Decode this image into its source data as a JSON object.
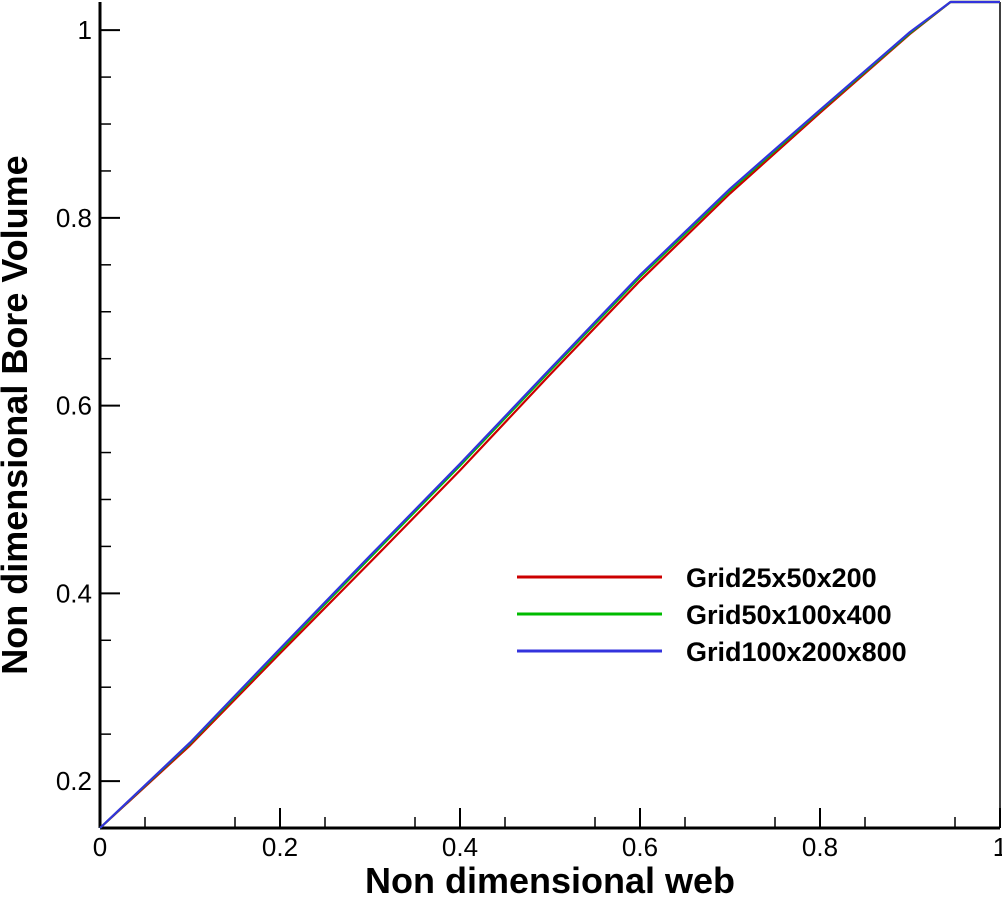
{
  "chart_data": {
    "type": "line",
    "title": "",
    "xlabel": "Non dimensional web",
    "ylabel": "Non dimensional Bore Volume",
    "xlim": [
      0,
      1
    ],
    "ylim": [
      0.15,
      1.03
    ],
    "x_ticks": [
      0,
      0.2,
      0.4,
      0.6,
      0.8,
      1
    ],
    "x_tick_labels": [
      "0",
      "0.2",
      "0.4",
      "0.6",
      "0.8",
      "1"
    ],
    "y_ticks": [
      0.2,
      0.4,
      0.6,
      0.8,
      1
    ],
    "y_tick_labels": [
      "0.2",
      "0.4",
      "0.6",
      "0.8",
      "1"
    ],
    "grid": false,
    "legend_position": "center-right",
    "series": [
      {
        "name": "Grid25x50x200",
        "color": "#cc0000",
        "x": [
          0,
          0.1,
          0.2,
          0.3,
          0.4,
          0.5,
          0.6,
          0.7,
          0.8,
          0.9,
          0.945,
          1.0
        ],
        "y": [
          0.15,
          0.238,
          0.336,
          0.433,
          0.531,
          0.633,
          0.733,
          0.826,
          0.912,
          0.996,
          1.03,
          1.03
        ]
      },
      {
        "name": "Grid50x100x400",
        "color": "#00bb00",
        "x": [
          0,
          0.1,
          0.2,
          0.3,
          0.4,
          0.5,
          0.6,
          0.7,
          0.8,
          0.9,
          0.945,
          1.0
        ],
        "y": [
          0.15,
          0.24,
          0.339,
          0.438,
          0.536,
          0.637,
          0.737,
          0.829,
          0.914,
          0.997,
          1.03,
          1.03
        ]
      },
      {
        "name": "Grid100x200x800",
        "color": "#3333dd",
        "x": [
          0,
          0.1,
          0.2,
          0.3,
          0.4,
          0.5,
          0.6,
          0.7,
          0.8,
          0.9,
          0.945,
          1.0
        ],
        "y": [
          0.15,
          0.241,
          0.341,
          0.44,
          0.538,
          0.639,
          0.739,
          0.831,
          0.915,
          0.998,
          1.03,
          1.03
        ]
      }
    ]
  }
}
